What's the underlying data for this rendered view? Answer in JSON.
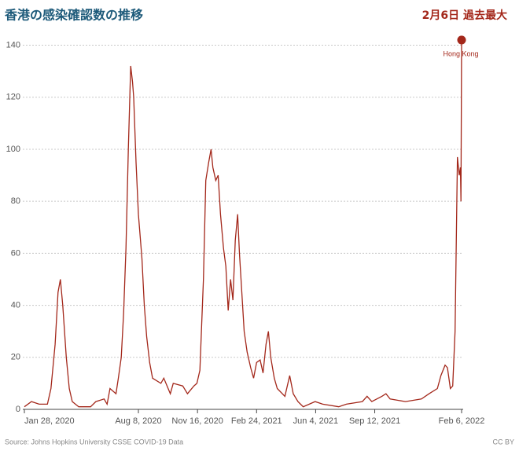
{
  "chart_data": {
    "type": "line",
    "title": "香港の感染確認数の推移",
    "annotation": "2月6日 過去最大",
    "source": "Source: Johns Hopkins University CSSE COVID-19 Data",
    "license": "CC BY",
    "series": [
      {
        "name": "Hong Kong",
        "color": "#a3271a",
        "x": [
          "2020-01-28",
          "2020-02-09",
          "2020-02-22",
          "2020-03-07",
          "2020-03-13",
          "2020-03-20",
          "2020-03-25",
          "2020-03-29",
          "2020-04-02",
          "2020-04-08",
          "2020-04-13",
          "2020-04-18",
          "2020-04-29",
          "2020-05-19",
          "2020-05-28",
          "2020-06-11",
          "2020-06-16",
          "2020-06-21",
          "2020-07-01",
          "2020-07-05",
          "2020-07-10",
          "2020-07-14",
          "2020-07-18",
          "2020-07-22",
          "2020-07-26",
          "2020-07-29",
          "2020-07-31",
          "2020-08-04",
          "2020-08-08",
          "2020-08-14",
          "2020-08-18",
          "2020-08-22",
          "2020-08-27",
          "2020-09-01",
          "2020-09-15",
          "2020-09-20",
          "2020-10-01",
          "2020-10-06",
          "2020-10-22",
          "2020-10-30",
          "2020-11-10",
          "2020-11-15",
          "2020-11-20",
          "2020-11-26",
          "2020-11-30",
          "2020-12-05",
          "2020-12-09",
          "2020-12-12",
          "2020-12-17",
          "2020-12-21",
          "2020-12-25",
          "2020-12-30",
          "2021-01-03",
          "2021-01-07",
          "2021-01-11",
          "2021-01-15",
          "2021-01-19",
          "2021-01-23",
          "2021-01-26",
          "2021-01-30",
          "2021-02-03",
          "2021-02-08",
          "2021-02-14",
          "2021-02-19",
          "2021-02-24",
          "2021-03-02",
          "2021-03-07",
          "2021-03-12",
          "2021-03-16",
          "2021-03-20",
          "2021-03-26",
          "2021-03-31",
          "2021-04-13",
          "2021-04-21",
          "2021-04-27",
          "2021-05-05",
          "2021-05-14",
          "2021-06-03",
          "2021-06-16",
          "2021-07-13",
          "2021-07-26",
          "2021-08-22",
          "2021-08-30",
          "2021-09-07",
          "2021-09-24",
          "2021-10-01",
          "2021-10-08",
          "2021-11-03",
          "2021-11-30",
          "2021-12-13",
          "2021-12-27",
          "2022-01-02",
          "2022-01-09",
          "2022-01-13",
          "2022-01-18",
          "2022-01-22",
          "2022-01-26",
          "2022-01-30",
          "2022-02-02",
          "2022-02-04",
          "2022-02-05",
          "2022-02-06"
        ],
        "values": [
          1,
          3,
          2,
          2,
          8,
          25,
          45,
          50,
          40,
          20,
          8,
          3,
          1,
          1,
          3,
          4,
          2,
          8,
          6,
          12,
          20,
          37,
          62,
          100,
          132,
          126,
          120,
          95,
          75,
          58,
          40,
          28,
          18,
          12,
          10,
          12,
          6,
          10,
          9,
          6,
          9,
          10,
          15,
          50,
          88,
          95,
          100,
          93,
          88,
          90,
          75,
          62,
          55,
          38,
          50,
          42,
          65,
          75,
          60,
          45,
          30,
          22,
          16,
          12,
          18,
          19,
          14,
          25,
          30,
          20,
          12,
          8,
          5,
          13,
          6,
          3,
          1,
          3,
          2,
          1,
          2,
          3,
          5,
          3,
          5,
          6,
          4,
          3,
          4,
          6,
          8,
          13,
          17,
          16,
          8,
          9,
          30,
          97,
          90,
          93,
          80,
          142
        ]
      }
    ],
    "xlim": [
      "2020-01-28",
      "2022-02-06"
    ],
    "xticks": [
      {
        "value": "2020-01-28",
        "label": "Jan 28, 2020"
      },
      {
        "value": "2020-08-08",
        "label": "Aug 8, 2020"
      },
      {
        "value": "2020-11-16",
        "label": "Nov 16, 2020"
      },
      {
        "value": "2021-02-24",
        "label": "Feb 24, 2021"
      },
      {
        "value": "2021-06-04",
        "label": "Jun 4, 2021"
      },
      {
        "value": "2021-09-12",
        "label": "Sep 12, 2021"
      },
      {
        "value": "2022-02-06",
        "label": "Feb 6, 2022"
      }
    ],
    "ylim": [
      0,
      145
    ],
    "yticks": [
      0,
      20,
      40,
      60,
      80,
      100,
      120,
      140
    ],
    "grid": true
  }
}
